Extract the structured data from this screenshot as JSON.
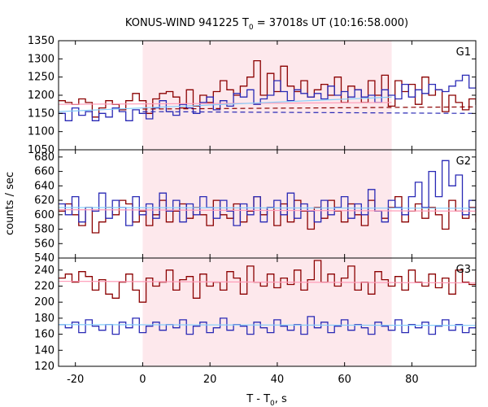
{
  "chart_data": {
    "type": "line",
    "title_main": "KONUS-WIND 941225 T",
    "title_sub": "0",
    "title_rest": " = 37018s UT (10:16:58.000)",
    "xlabel_main": "T - T",
    "xlabel_sub": "0",
    "xlabel_rest": ", s",
    "ylabel": "counts / sec",
    "xlim": [
      -25,
      99
    ],
    "x_ticks": [
      -20,
      0,
      20,
      40,
      60,
      80
    ],
    "shaded_interval": [
      0,
      74
    ],
    "bin_width": 2,
    "colors": {
      "red": "#8b0000",
      "blue": "#2929b5",
      "pink": "#ff9db9",
      "lightblue": "#87cefa",
      "shade": "#fde8ec"
    },
    "panels": [
      {
        "name": "G1",
        "ylim": [
          1050,
          1350
        ],
        "y_ticks": [
          1050,
          1100,
          1150,
          1200,
          1250,
          1300,
          1350
        ],
        "series": [
          {
            "color": "red",
            "x0": -25,
            "values": [
              1185,
              1180,
              1175,
              1190,
              1180,
              1140,
              1165,
              1185,
              1175,
              1160,
              1185,
              1205,
              1185,
              1150,
              1190,
              1205,
              1210,
              1195,
              1165,
              1215,
              1170,
              1200,
              1180,
              1210,
              1240,
              1215,
              1200,
              1225,
              1250,
              1295,
              1200,
              1260,
              1210,
              1280,
              1225,
              1210,
              1240,
              1195,
              1215,
              1230,
              1200,
              1250,
              1180,
              1225,
              1215,
              1180,
              1240,
              1200,
              1255,
              1170,
              1240,
              1210,
              1230,
              1175,
              1250,
              1200,
              1215,
              1155,
              1200,
              1180,
              1160,
              1190,
              1175,
              1145,
              1170,
              1175,
              1185,
              1140,
              1165,
              1160,
              1150,
              1190,
              1155,
              1175,
              1160,
              1140,
              1175,
              1160,
              1175,
              1175,
              1160,
              1180,
              1170,
              1150,
              1175,
              1175,
              1160,
              1165,
              1160,
              1185,
              1150,
              1175,
              1165,
              1170,
              1160,
              1180,
              1165,
              1150,
              1175,
              1165,
              1150,
              1155,
              1180,
              1175,
              1165,
              1170,
              1160,
              1180,
              1165,
              1160,
              1175,
              1165,
              1150,
              1185,
              1160,
              1170,
              1165,
              1160,
              1175,
              1165,
              1175,
              1165,
              1160,
              1160
            ]
          },
          {
            "color": "blue",
            "x0": -25,
            "values": [
              1150,
              1130,
              1165,
              1145,
              1155,
              1130,
              1150,
              1140,
              1165,
              1155,
              1130,
              1160,
              1150,
              1135,
              1165,
              1185,
              1155,
              1145,
              1175,
              1165,
              1150,
              1180,
              1195,
              1160,
              1185,
              1170,
              1205,
              1195,
              1215,
              1175,
              1190,
              1200,
              1240,
              1210,
              1185,
              1215,
              1205,
              1195,
              1205,
              1190,
              1225,
              1200,
              1210,
              1195,
              1215,
              1195,
              1200,
              1180,
              1215,
              1200,
              1190,
              1230,
              1195,
              1215,
              1205,
              1230,
              1215,
              1210,
              1225,
              1240,
              1255,
              1220,
              1245,
              1230,
              1265,
              1185,
              1230,
              1200,
              1220,
              1190,
              1215,
              1205,
              1190,
              1210,
              1195,
              1175,
              1210,
              1185,
              1175,
              1210,
              1195,
              1205,
              1215,
              1200,
              1190,
              1175,
              1195,
              1180,
              1200,
              1175,
              1190,
              1165,
              1185,
              1175,
              1160,
              1180,
              1170,
              1185,
              1160,
              1170,
              1160,
              1185,
              1150,
              1165,
              1155,
              1170,
              1165,
              1155,
              1175,
              1160,
              1180,
              1150,
              1165,
              1170,
              1155,
              1160,
              1175,
              1150,
              1165,
              1155,
              1160,
              1170,
              1155,
              1165
            ]
          }
        ],
        "fits": [
          {
            "color": "pink",
            "style": "solid",
            "x": [
              -25,
              74
            ],
            "y": [
              1175,
              1180
            ]
          },
          {
            "color": "red",
            "style": "dashed",
            "x": [
              0,
              99
            ],
            "y": [
              1162,
              1168
            ]
          },
          {
            "color": "lightblue",
            "style": "solid",
            "x": [
              -25,
              74
            ],
            "y": [
              1155,
              1195
            ]
          },
          {
            "color": "blue",
            "style": "dashed",
            "x": [
              0,
              99
            ],
            "y": [
              1155,
              1150
            ]
          }
        ]
      },
      {
        "name": "G2",
        "ylim": [
          540,
          690
        ],
        "y_ticks": [
          540,
          560,
          580,
          600,
          620,
          640,
          660,
          680
        ],
        "series": [
          {
            "color": "red",
            "x0": -25,
            "values": [
              605,
              615,
              600,
              585,
              610,
              575,
              590,
              610,
              600,
              620,
              615,
              590,
              605,
              585,
              600,
              620,
              590,
              605,
              615,
              595,
              610,
              600,
              585,
              620,
              600,
              595,
              615,
              590,
              605,
              625,
              600,
              610,
              585,
              615,
              590,
              620,
              605,
              580,
              610,
              595,
              620,
              605,
              590,
              615,
              600,
              585,
              620,
              605,
              595,
              610,
              625,
              590,
              605,
              615,
              595,
              610,
              600,
              580,
              620,
              605,
              595,
              610,
              590,
              620,
              605,
              615,
              590,
              600,
              610,
              625,
              595,
              605,
              585,
              615,
              600,
              620,
              595,
              610,
              580,
              605,
              620,
              590,
              610,
              600,
              615,
              595,
              605,
              620,
              590,
              610,
              600,
              585,
              615,
              605,
              595,
              610,
              600,
              620,
              590,
              605,
              615,
              595,
              610,
              600,
              620,
              590,
              605,
              615,
              595,
              610,
              600,
              605,
              620,
              590,
              610,
              600,
              615,
              595,
              605,
              610,
              600,
              615,
              605,
              600
            ]
          },
          {
            "color": "blue",
            "x0": -25,
            "values": [
              615,
              600,
              625,
              590,
              610,
              605,
              630,
              595,
              620,
              610,
              585,
              625,
              600,
              615,
              595,
              630,
              605,
              620,
              590,
              615,
              600,
              625,
              610,
              595,
              620,
              605,
              585,
              615,
              600,
              625,
              590,
              610,
              620,
              600,
              630,
              595,
              615,
              605,
              590,
              620,
              600,
              610,
              625,
              595,
              615,
              600,
              635,
              605,
              590,
              620,
              610,
              600,
              625,
              645,
              610,
              660,
              625,
              675,
              640,
              655,
              600,
              620,
              605,
              630,
              590,
              615,
              600,
              625,
              610,
              595,
              620,
              605,
              630,
              590,
              615,
              600,
              620,
              595,
              610,
              625,
              600,
              615,
              590,
              605,
              620,
              600,
              615,
              610,
              595,
              625,
              605,
              590,
              615,
              600,
              620,
              605,
              595,
              615,
              600,
              625,
              610,
              595,
              620,
              605,
              615,
              600,
              625,
              610,
              595,
              620,
              600,
              615,
              605,
              625,
              600,
              615,
              610,
              595,
              620,
              605,
              615,
              600,
              610,
              605
            ]
          }
        ],
        "fits": [
          {
            "color": "pink",
            "style": "solid",
            "x": [
              -25,
              99
            ],
            "y": [
              607,
              605
            ]
          },
          {
            "color": "lightblue",
            "style": "solid",
            "x": [
              -25,
              99
            ],
            "y": [
              610,
              609
            ]
          }
        ]
      },
      {
        "name": "G3",
        "ylim": [
          120,
          255
        ],
        "y_ticks": [
          120,
          140,
          160,
          180,
          200,
          220,
          240
        ],
        "series": [
          {
            "color": "red",
            "x0": -25,
            "values": [
              230,
              235,
              225,
              238,
              232,
              215,
              228,
              210,
              205,
              225,
              235,
              215,
              200,
              230,
              220,
              225,
              240,
              215,
              228,
              232,
              205,
              235,
              220,
              225,
              215,
              238,
              230,
              210,
              245,
              225,
              220,
              235,
              218,
              230,
              222,
              240,
              215,
              228,
              252,
              225,
              235,
              220,
              230,
              245,
              215,
              225,
              210,
              238,
              228,
              220,
              232,
              215,
              240,
              225,
              220,
              235,
              218,
              230,
              210,
              240,
              225,
              222,
              238,
              215,
              230,
              228,
              220,
              235,
              212,
              240,
              225,
              228,
              218,
              232,
              220,
              240,
              225,
              215,
              235,
              228,
              222,
              238,
              215,
              230,
              225,
              218,
              238,
              222,
              230,
              215,
              235,
              225,
              220,
              232,
              218,
              240,
              225,
              228,
              215,
              235,
              222,
              230,
              220,
              238,
              225,
              218,
              232,
              225,
              220,
              235,
              215,
              230,
              228,
              222,
              238,
              220,
              230,
              218,
              235,
              225,
              228,
              222,
              230,
              225
            ]
          },
          {
            "color": "blue",
            "x0": -25,
            "values": [
              172,
              168,
              175,
              162,
              178,
              170,
              165,
              172,
              160,
              175,
              168,
              180,
              162,
              170,
              175,
              165,
              172,
              168,
              178,
              160,
              170,
              175,
              162,
              168,
              180,
              165,
              172,
              170,
              160,
              175,
              168,
              162,
              178,
              170,
              165,
              172,
              160,
              182,
              168,
              175,
              162,
              170,
              178,
              165,
              172,
              168,
              160,
              175,
              170,
              165,
              178,
              162,
              172,
              168,
              175,
              160,
              170,
              178,
              165,
              172,
              162,
              168,
              175,
              170,
              160,
              178,
              165,
              172,
              168,
              162,
              175,
              170,
              165,
              172,
              180,
              160,
              168,
              175,
              162,
              170,
              178,
              165,
              172,
              168,
              160,
              175,
              170,
              165,
              172,
              178,
              162,
              168,
              175,
              170,
              165,
              160,
              185,
              172,
              168,
              175,
              162,
              170,
              178,
              165,
              172,
              168,
              160,
              175,
              170,
              165,
              172,
              178,
              162,
              168,
              175,
              170,
              165,
              172,
              168,
              175,
              170,
              165,
              172,
              170
            ]
          }
        ],
        "fits": [
          {
            "color": "pink",
            "style": "solid",
            "x": [
              -25,
              99
            ],
            "y": [
              226,
              224
            ]
          },
          {
            "color": "lightblue",
            "style": "solid",
            "x": [
              -25,
              99
            ],
            "y": [
              172,
              171
            ]
          }
        ]
      }
    ]
  }
}
